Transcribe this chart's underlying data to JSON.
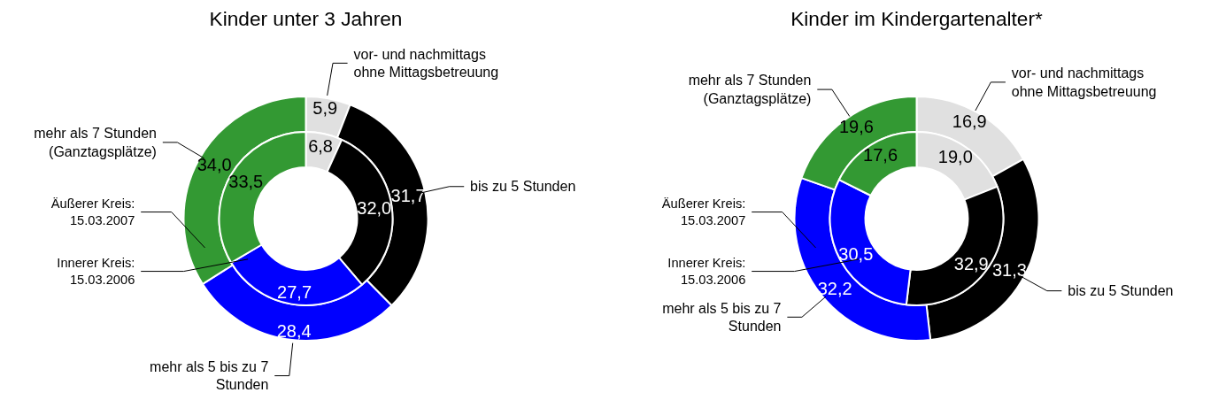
{
  "chart_data": [
    {
      "type": "donut",
      "title": "Kinder unter 3 Jahren",
      "categories": [
        "vor- und nachmittags ohne Mittagsbetreuung",
        "bis zu 5 Stunden",
        "mehr als 5 bis zu 7 Stunden",
        "mehr als 7 Stunden (Ganztagsplätze)"
      ],
      "colors": [
        "#e0e0e0",
        "#000000",
        "#0000ff",
        "#339933"
      ],
      "series": [
        {
          "name": "Äußerer Kreis: 15.03.2007",
          "values": [
            5.9,
            31.7,
            28.4,
            34.0
          ],
          "value_labels": [
            "5,9",
            "31,7",
            "28,4",
            "34,0"
          ]
        },
        {
          "name": "Innerer Kreis: 15.03.2006",
          "values": [
            6.8,
            32.0,
            27.7,
            33.5
          ],
          "value_labels": [
            "6,8",
            "32,0",
            "27,7",
            "33,5"
          ]
        }
      ]
    },
    {
      "type": "donut",
      "title": "Kinder im Kindergartenalter*",
      "categories": [
        "vor- und nachmittags ohne Mittagsbetreuung",
        "bis zu 5 Stunden",
        "mehr als 5 bis zu 7 Stunden",
        "mehr als 7 Stunden (Ganztagsplätze)"
      ],
      "colors": [
        "#e0e0e0",
        "#000000",
        "#0000ff",
        "#339933"
      ],
      "series": [
        {
          "name": "Äußerer Kreis: 15.03.2007",
          "values": [
            16.9,
            31.3,
            32.2,
            19.6
          ],
          "value_labels": [
            "16,9",
            "31,3",
            "32,2",
            "19,6"
          ]
        },
        {
          "name": "Innerer Kreis: 15.03.2006",
          "values": [
            19.0,
            32.9,
            30.5,
            17.6
          ],
          "value_labels": [
            "19,0",
            "32,9",
            "30,5",
            "17,6"
          ]
        }
      ]
    }
  ]
}
